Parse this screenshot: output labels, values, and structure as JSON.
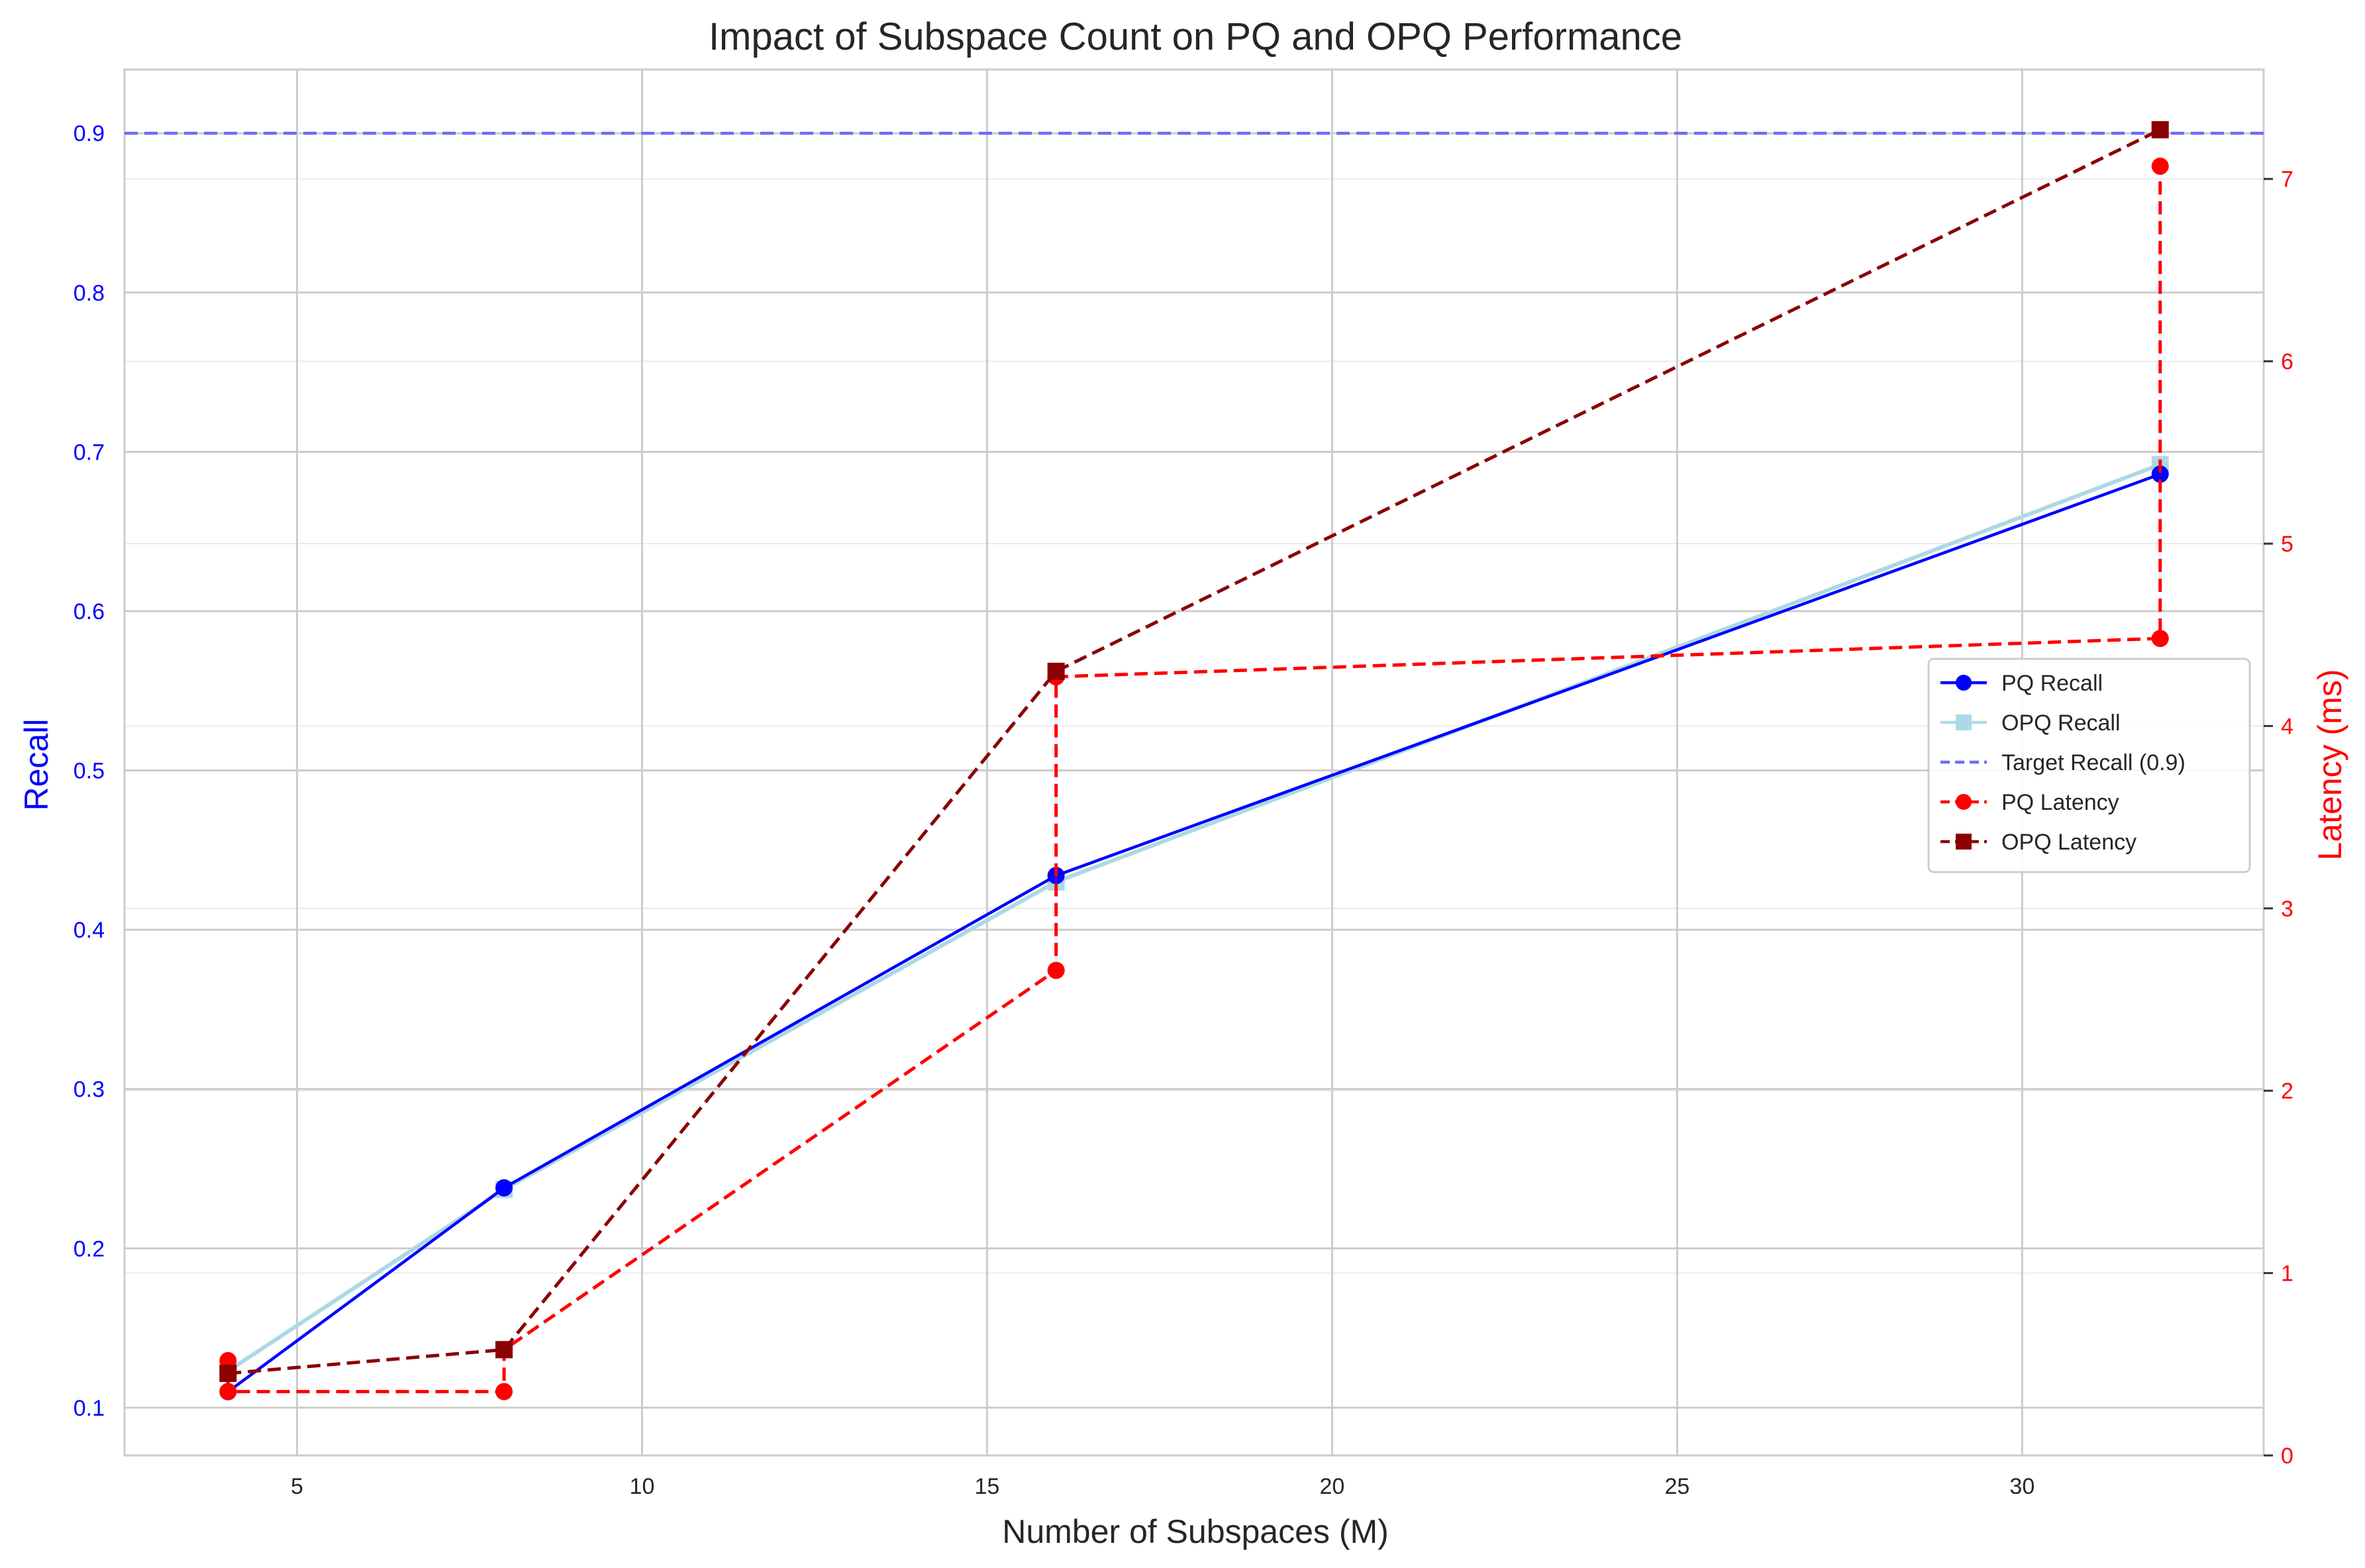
{
  "chart_data": {
    "type": "line",
    "title": "Impact of Subspace Count on PQ and OPQ Performance",
    "xlabel": "Number of Subspaces (M)",
    "ylabel_left": "Recall",
    "ylabel_right": "Latency (ms)",
    "xlim": [
      2.5,
      33.5
    ],
    "ylim_left": [
      0.07,
      0.94
    ],
    "ylim_right": [
      0,
      7.6
    ],
    "xticks": [
      5,
      10,
      15,
      20,
      25,
      30
    ],
    "yticks_left": [
      "0.1",
      "0.2",
      "0.3",
      "0.4",
      "0.5",
      "0.6",
      "0.7",
      "0.8",
      "0.9"
    ],
    "yticks_right": [
      "0",
      "1",
      "2",
      "3",
      "4",
      "5",
      "6",
      "7"
    ],
    "grid": true,
    "legend_position": "center-right",
    "colors": {
      "pq_recall": "#0000ff",
      "opq_recall": "#add8e6",
      "target": "#6b6bff",
      "pq_latency": "#ff0000",
      "opq_latency": "#8b0000",
      "left_axis": "#0000ff",
      "right_axis": "#ff0000",
      "grid": "#cccccc"
    },
    "series": [
      {
        "name": "PQ Recall",
        "axis": "left",
        "marker": "circle",
        "dashed": false,
        "color": "#0000ff",
        "points": [
          [
            4,
            0.11
          ],
          [
            8,
            0.238
          ],
          [
            16,
            0.434
          ],
          [
            32,
            0.686
          ]
        ]
      },
      {
        "name": "OPQ Recall",
        "axis": "left",
        "marker": "square",
        "dashed": false,
        "color": "#add8e6",
        "points": [
          [
            4,
            0.123
          ],
          [
            8,
            0.237
          ],
          [
            16,
            0.43
          ],
          [
            32,
            0.692
          ]
        ]
      },
      {
        "name": "PQ Latency",
        "axis": "right",
        "marker": "circle",
        "dashed": true,
        "color": "#ff0000",
        "points": [
          [
            4,
            0.52
          ],
          [
            4,
            0.35
          ],
          [
            8,
            0.35
          ],
          [
            8,
            0.58
          ],
          [
            16,
            2.66
          ],
          [
            16,
            4.27
          ],
          [
            32,
            4.48
          ],
          [
            32,
            7.07
          ]
        ]
      },
      {
        "name": "OPQ Latency",
        "axis": "right",
        "marker": "square",
        "dashed": true,
        "color": "#8b0000",
        "points": [
          [
            4,
            0.45
          ],
          [
            8,
            0.58
          ],
          [
            16,
            4.3
          ],
          [
            32,
            7.27
          ]
        ]
      }
    ],
    "reference_lines": [
      {
        "name": "Target Recall (0.9)",
        "axis": "left",
        "y": 0.9,
        "color": "#6b6bff",
        "dashed": true
      }
    ],
    "legend": [
      {
        "label": "PQ Recall",
        "color": "#0000ff",
        "marker": "circle",
        "dashed": false
      },
      {
        "label": "OPQ Recall",
        "color": "#add8e6",
        "marker": "square",
        "dashed": false
      },
      {
        "label": "Target Recall (0.9)",
        "color": "#6b6bff",
        "marker": "none",
        "dashed": true
      },
      {
        "label": "PQ Latency",
        "color": "#ff0000",
        "marker": "circle",
        "dashed": true
      },
      {
        "label": "OPQ Latency",
        "color": "#8b0000",
        "marker": "square",
        "dashed": true
      }
    ]
  }
}
